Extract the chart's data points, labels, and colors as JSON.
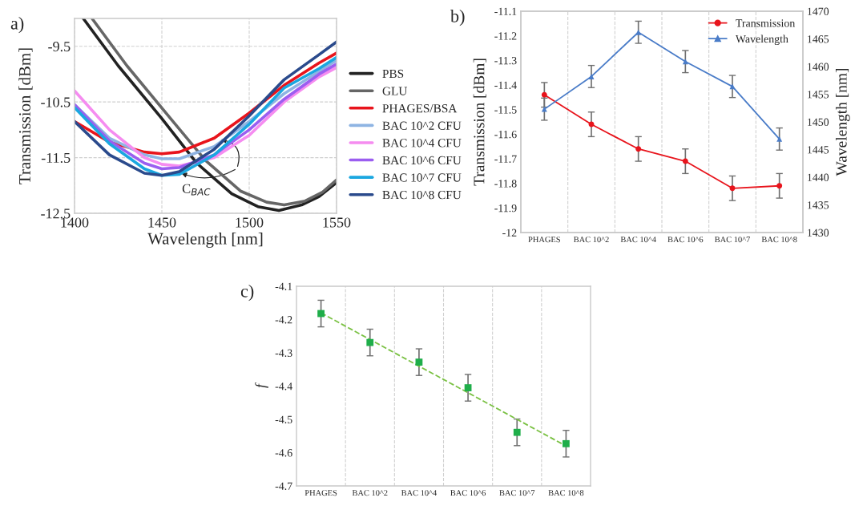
{
  "chart_data": [
    {
      "type": "line",
      "title": "a)",
      "xlabel": "Wavelength [nm]",
      "ylabel": "Transmission [dBm]",
      "xlim": [
        1400,
        1550
      ],
      "ylim": [
        -12.5,
        -9.0
      ],
      "xticks": [
        1400,
        1450,
        1500,
        1550
      ],
      "yticks": [
        -12.5,
        -11.5,
        -10.5,
        -9.5
      ],
      "grid": true,
      "legend": "right",
      "annotations": [
        "C$_{BAC}$"
      ],
      "series": [
        {
          "name": "PBS",
          "color": "#222222",
          "x": [
            1405,
            1425,
            1450,
            1470,
            1490,
            1505,
            1517,
            1530,
            1540,
            1550
          ],
          "values": [
            -9.0,
            -9.85,
            -10.8,
            -11.6,
            -12.15,
            -12.38,
            -12.45,
            -12.35,
            -12.2,
            -11.95
          ]
        },
        {
          "name": "GLU",
          "color": "#666666",
          "x": [
            1410,
            1430,
            1455,
            1475,
            1495,
            1510,
            1520,
            1532,
            1542,
            1550
          ],
          "values": [
            -9.0,
            -9.85,
            -10.8,
            -11.55,
            -12.1,
            -12.3,
            -12.35,
            -12.28,
            -12.12,
            -11.9
          ]
        },
        {
          "name": "PHAGES/BSA",
          "color": "#e8141c",
          "x": [
            1400,
            1420,
            1440,
            1450,
            1460,
            1480,
            1500,
            1520,
            1540,
            1550
          ],
          "values": [
            -10.85,
            -11.22,
            -11.4,
            -11.43,
            -11.4,
            -11.15,
            -10.7,
            -10.2,
            -9.8,
            -9.62
          ]
        },
        {
          "name": "BAC 10^2 CFU",
          "color": "#8eb4e3",
          "x": [
            1400,
            1420,
            1440,
            1450,
            1460,
            1480,
            1500,
            1520,
            1540,
            1550
          ],
          "values": [
            -10.55,
            -11.15,
            -11.45,
            -11.52,
            -11.52,
            -11.3,
            -10.85,
            -10.35,
            -9.95,
            -9.75
          ]
        },
        {
          "name": "BAC 10^4 CFU",
          "color": "#f58cf0",
          "x": [
            1400,
            1420,
            1440,
            1450,
            1460,
            1480,
            1500,
            1520,
            1540,
            1550
          ],
          "values": [
            -10.3,
            -11.0,
            -11.5,
            -11.62,
            -11.65,
            -11.5,
            -11.1,
            -10.5,
            -10.05,
            -9.88
          ]
        },
        {
          "name": "BAC 10^6 CFU",
          "color": "#9b5ef0",
          "x": [
            1400,
            1420,
            1440,
            1450,
            1460,
            1480,
            1500,
            1520,
            1540,
            1550
          ],
          "values": [
            -10.55,
            -11.2,
            -11.6,
            -11.7,
            -11.68,
            -11.45,
            -11.0,
            -10.45,
            -10.0,
            -9.82
          ]
        },
        {
          "name": "BAC 10^7 CFU",
          "color": "#1aa7e0",
          "x": [
            1400,
            1420,
            1440,
            1450,
            1460,
            1480,
            1500,
            1520,
            1540,
            1550
          ],
          "values": [
            -10.6,
            -11.25,
            -11.7,
            -11.82,
            -11.8,
            -11.45,
            -10.9,
            -10.25,
            -9.9,
            -9.7
          ]
        },
        {
          "name": "BAC 10^8 CFU",
          "color": "#2a4a8c",
          "x": [
            1400,
            1420,
            1440,
            1450,
            1460,
            1480,
            1500,
            1520,
            1540,
            1550
          ],
          "values": [
            -10.85,
            -11.45,
            -11.78,
            -11.82,
            -11.75,
            -11.35,
            -10.75,
            -10.1,
            -9.65,
            -9.42
          ]
        }
      ]
    },
    {
      "type": "line",
      "title": "b)",
      "ylabel": "Transmission [dBm]",
      "y2label": "Wavelength [nm]",
      "categories": [
        "PHAGES",
        "BAC 10^2",
        "BAC 10^4",
        "BAC 10^6",
        "BAC 10^7",
        "BAC 10^8"
      ],
      "ylim": [
        -12,
        -11.1
      ],
      "yticks": [
        -12,
        -11.9,
        -11.8,
        -11.7,
        -11.6,
        -11.5,
        -11.4,
        -11.3,
        -11.2,
        -11.1
      ],
      "y2lim": [
        1430,
        1470
      ],
      "y2ticks": [
        1430,
        1435,
        1440,
        1445,
        1450,
        1455,
        1460,
        1465,
        1470
      ],
      "grid": "x",
      "legend": "top right",
      "series": [
        {
          "name": "Transmission",
          "color": "#e8141c",
          "marker": "circle",
          "values": [
            -11.44,
            -11.56,
            -11.66,
            -11.71,
            -11.82,
            -11.81
          ],
          "errors": [
            0.05,
            0.05,
            0.05,
            0.05,
            0.05,
            0.05
          ]
        },
        {
          "name": "Wavelength",
          "color": "#4a7cc8",
          "marker": "triangle",
          "axis": "y2",
          "values": [
            1452.3,
            1458.2,
            1466.2,
            1460.9,
            1456.4,
            1446.9
          ],
          "errors": [
            2,
            2,
            2,
            2,
            2,
            2
          ]
        }
      ]
    },
    {
      "type": "scatter",
      "title": "c)",
      "ylabel": "f",
      "categories": [
        "PHAGES",
        "BAC 10^2",
        "BAC 10^4",
        "BAC 10^6",
        "BAC 10^7",
        "BAC 10^8"
      ],
      "ylim": [
        -4.7,
        -4.1
      ],
      "yticks": [
        -4.7,
        -4.6,
        -4.5,
        -4.4,
        -4.3,
        -4.2,
        -4.1
      ],
      "grid": "x",
      "series": [
        {
          "type": "line",
          "color": "#7ac143",
          "line_style": "dashed",
          "values": [
            -4.18,
            -4.26,
            -4.34,
            -4.42,
            -4.5,
            -4.58
          ]
        },
        {
          "type": "scatter",
          "color": "#1fae4a",
          "marker": "square",
          "values": [
            -4.182,
            -4.269,
            -4.328,
            -4.405,
            -4.539,
            -4.573
          ],
          "errors": [
            0.04,
            0.04,
            0.04,
            0.04,
            0.04,
            0.04
          ]
        }
      ]
    }
  ]
}
